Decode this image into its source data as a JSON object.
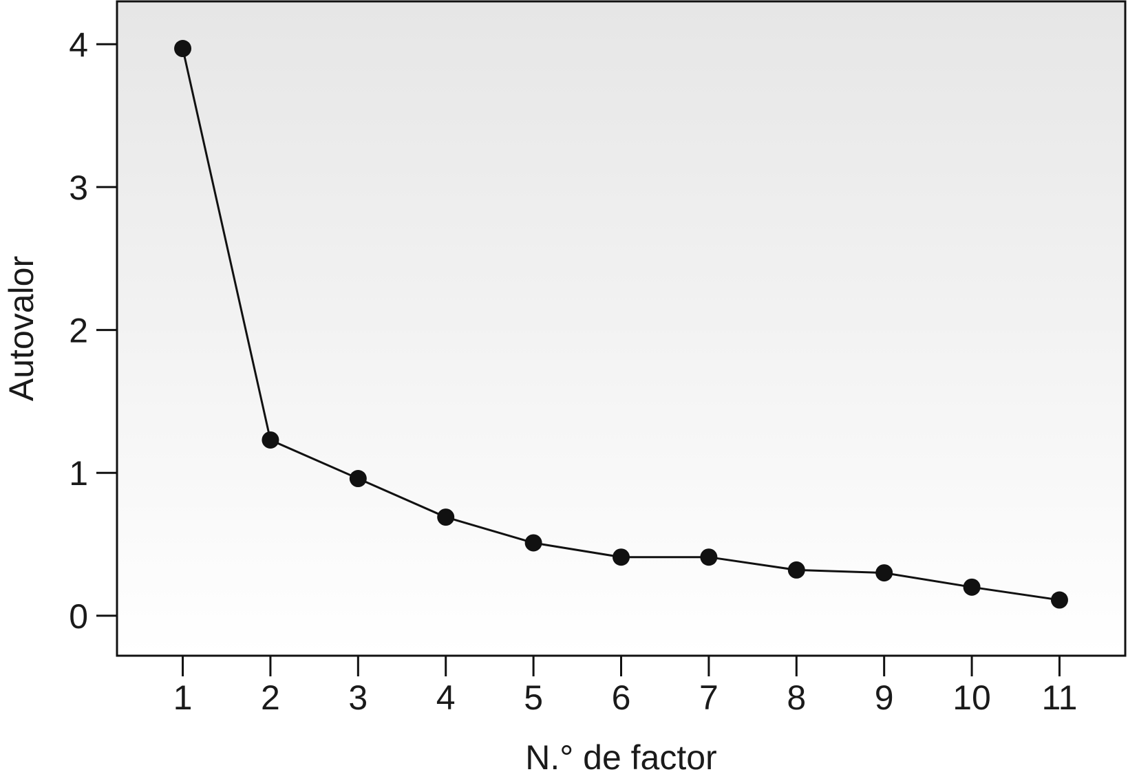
{
  "chart_data": {
    "type": "line",
    "xlabel": "N.° de factor",
    "ylabel": "Autovalor",
    "x": [
      1,
      2,
      3,
      4,
      5,
      6,
      7,
      8,
      9,
      10,
      11
    ],
    "x_tick_labels": [
      "1",
      "2",
      "3",
      "4",
      "5",
      "6",
      "7",
      "8",
      "9",
      "10",
      "11"
    ],
    "y_tick_labels": [
      "0",
      "1",
      "2",
      "3",
      "4"
    ],
    "y_ticks": [
      0,
      1,
      2,
      3,
      4
    ],
    "series": [
      {
        "values": [
          3.97,
          1.23,
          0.96,
          0.69,
          0.51,
          0.41,
          0.41,
          0.32,
          0.3,
          0.2,
          0.11
        ]
      }
    ],
    "xlim": [
      0.25,
      11.75
    ],
    "ylim": [
      -0.28,
      4.3
    ],
    "grid": false,
    "background": "vertical gradient light gray to white",
    "colors": {
      "line": "#111111",
      "marker": "#111111",
      "frame": "#111111",
      "bg_top": "#e6e6e6",
      "bg_bottom": "#ffffff"
    }
  }
}
